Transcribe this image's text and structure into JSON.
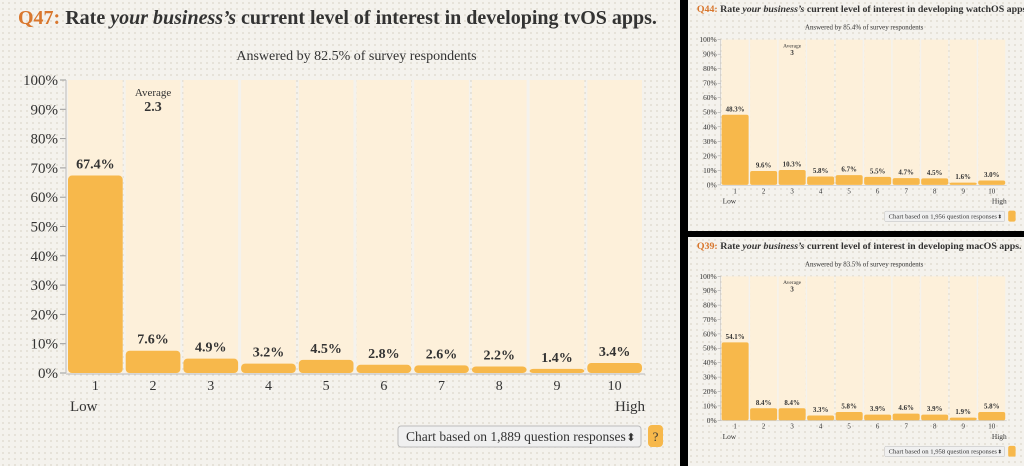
{
  "colors": {
    "bar": "#f7b84b",
    "column_bg": "#fdf0da",
    "question_number": "#d9772e",
    "text": "#333333",
    "help_button": "#f7b84b"
  },
  "chart_data": [
    {
      "type": "bar",
      "question_number": "Q47:",
      "title_parts": [
        "Rate ",
        "your business’s",
        " current level of interest in developing tvOS apps."
      ],
      "subtitle": "Answered by 82.5% of survey respondents",
      "categories": [
        "1",
        "2",
        "3",
        "4",
        "5",
        "6",
        "7",
        "8",
        "9",
        "10"
      ],
      "values": [
        67.4,
        7.6,
        4.9,
        3.2,
        4.5,
        2.8,
        2.6,
        2.2,
        1.4,
        3.4
      ],
      "value_labels": [
        "67.4%",
        "7.6%",
        "4.9%",
        "3.2%",
        "4.5%",
        "2.8%",
        "2.6%",
        "2.2%",
        "1.4%",
        "3.4%"
      ],
      "yticks": [
        "0%",
        "10%",
        "20%",
        "30%",
        "40%",
        "50%",
        "60%",
        "70%",
        "80%",
        "90%",
        "100%"
      ],
      "ylim": [
        0,
        100
      ],
      "average_label": "Average",
      "average_value": "2.3",
      "low_label": "Low",
      "high_label": "High",
      "dropdown": "Chart based on 1,889 question responses",
      "help_label": "?"
    },
    {
      "type": "bar",
      "question_number": "Q44:",
      "title_parts": [
        "Rate ",
        "your business’s",
        " current level of interest in developing watchOS apps."
      ],
      "subtitle": "Answered by 85.4% of survey respondents",
      "categories": [
        "1",
        "2",
        "3",
        "4",
        "5",
        "6",
        "7",
        "8",
        "9",
        "10"
      ],
      "values": [
        48.3,
        9.6,
        10.3,
        5.8,
        6.7,
        5.5,
        4.7,
        4.5,
        1.6,
        3.0
      ],
      "value_labels": [
        "48.3%",
        "9.6%",
        "10.3%",
        "5.8%",
        "6.7%",
        "5.5%",
        "4.7%",
        "4.5%",
        "1.6%",
        "3.0%"
      ],
      "yticks": [
        "0%",
        "10%",
        "20%",
        "30%",
        "40%",
        "50%",
        "60%",
        "70%",
        "80%",
        "90%",
        "100%"
      ],
      "ylim": [
        0,
        100
      ],
      "average_label": "Average",
      "average_value": "3",
      "low_label": "Low",
      "high_label": "High",
      "dropdown": "Chart based on 1,956 question responses",
      "help_label": ""
    },
    {
      "type": "bar",
      "question_number": "Q39:",
      "title_parts": [
        "Rate ",
        "your business’s",
        " current level of interest in developing macOS apps."
      ],
      "subtitle": "Answered by 83.5% of survey respondents",
      "categories": [
        "1",
        "2",
        "3",
        "4",
        "5",
        "6",
        "7",
        "8",
        "9",
        "10"
      ],
      "values": [
        54.1,
        8.4,
        8.4,
        3.3,
        5.8,
        3.9,
        4.6,
        3.9,
        1.9,
        5.8
      ],
      "value_labels": [
        "54.1%",
        "8.4%",
        "8.4%",
        "3.3%",
        "5.8%",
        "3.9%",
        "4.6%",
        "3.9%",
        "1.9%",
        "5.8%"
      ],
      "yticks": [
        "0%",
        "10%",
        "20%",
        "30%",
        "40%",
        "50%",
        "60%",
        "70%",
        "80%",
        "90%",
        "100%"
      ],
      "ylim": [
        0,
        100
      ],
      "average_label": "Average",
      "average_value": "3",
      "low_label": "Low",
      "high_label": "High",
      "dropdown": "Chart based on 1,958 question responses",
      "help_label": ""
    }
  ]
}
